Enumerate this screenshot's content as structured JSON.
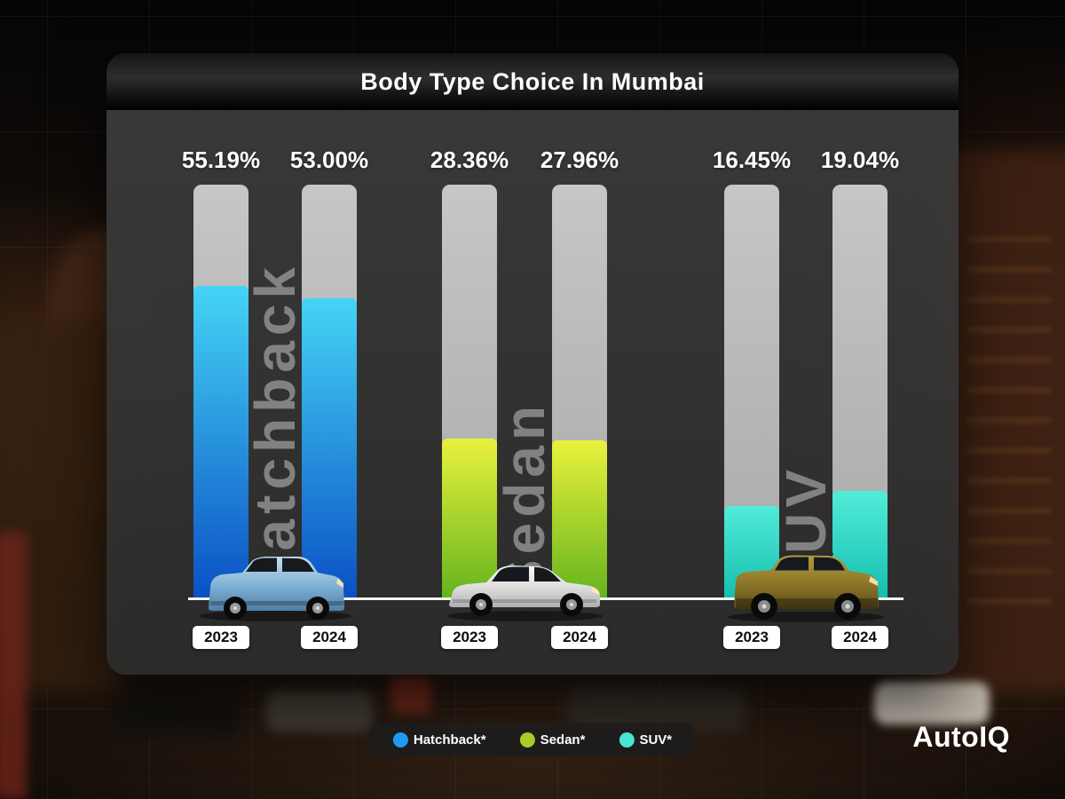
{
  "brand": "AutoIQ",
  "chart_data": {
    "type": "bar",
    "title": "Body Type Choice In Mumbai",
    "unit": "percent",
    "categories": [
      "2023",
      "2024"
    ],
    "ylim": [
      0,
      73
    ],
    "scale_max": 73,
    "legend_position": "bottom",
    "groups": [
      {
        "name": "Hatchback",
        "colors": {
          "top": "#45d4f5",
          "bottom": "#0a50c4"
        },
        "bars": [
          {
            "year": "2023",
            "value": 55.19,
            "label": "55.19%"
          },
          {
            "year": "2024",
            "value": 53.0,
            "label": "53.00%"
          }
        ]
      },
      {
        "name": "Sedan",
        "colors": {
          "top": "#e9f23c",
          "bottom": "#64b31e"
        },
        "bars": [
          {
            "year": "2023",
            "value": 28.36,
            "label": "28.36%"
          },
          {
            "year": "2024",
            "value": 27.96,
            "label": "27.96%"
          }
        ]
      },
      {
        "name": "SUV",
        "colors": {
          "top": "#52ecd9",
          "bottom": "#14bdae"
        },
        "bars": [
          {
            "year": "2023",
            "value": 16.45,
            "label": "16.45%"
          },
          {
            "year": "2024",
            "value": 19.04,
            "label": "19.04%"
          }
        ]
      }
    ]
  },
  "legend": {
    "items": [
      {
        "label": "Hatchback*",
        "color": "#1e9bf0"
      },
      {
        "label": "Sedan*",
        "color": "#a8cc29"
      },
      {
        "label": "SUV*",
        "color": "#49e6d2"
      }
    ]
  }
}
